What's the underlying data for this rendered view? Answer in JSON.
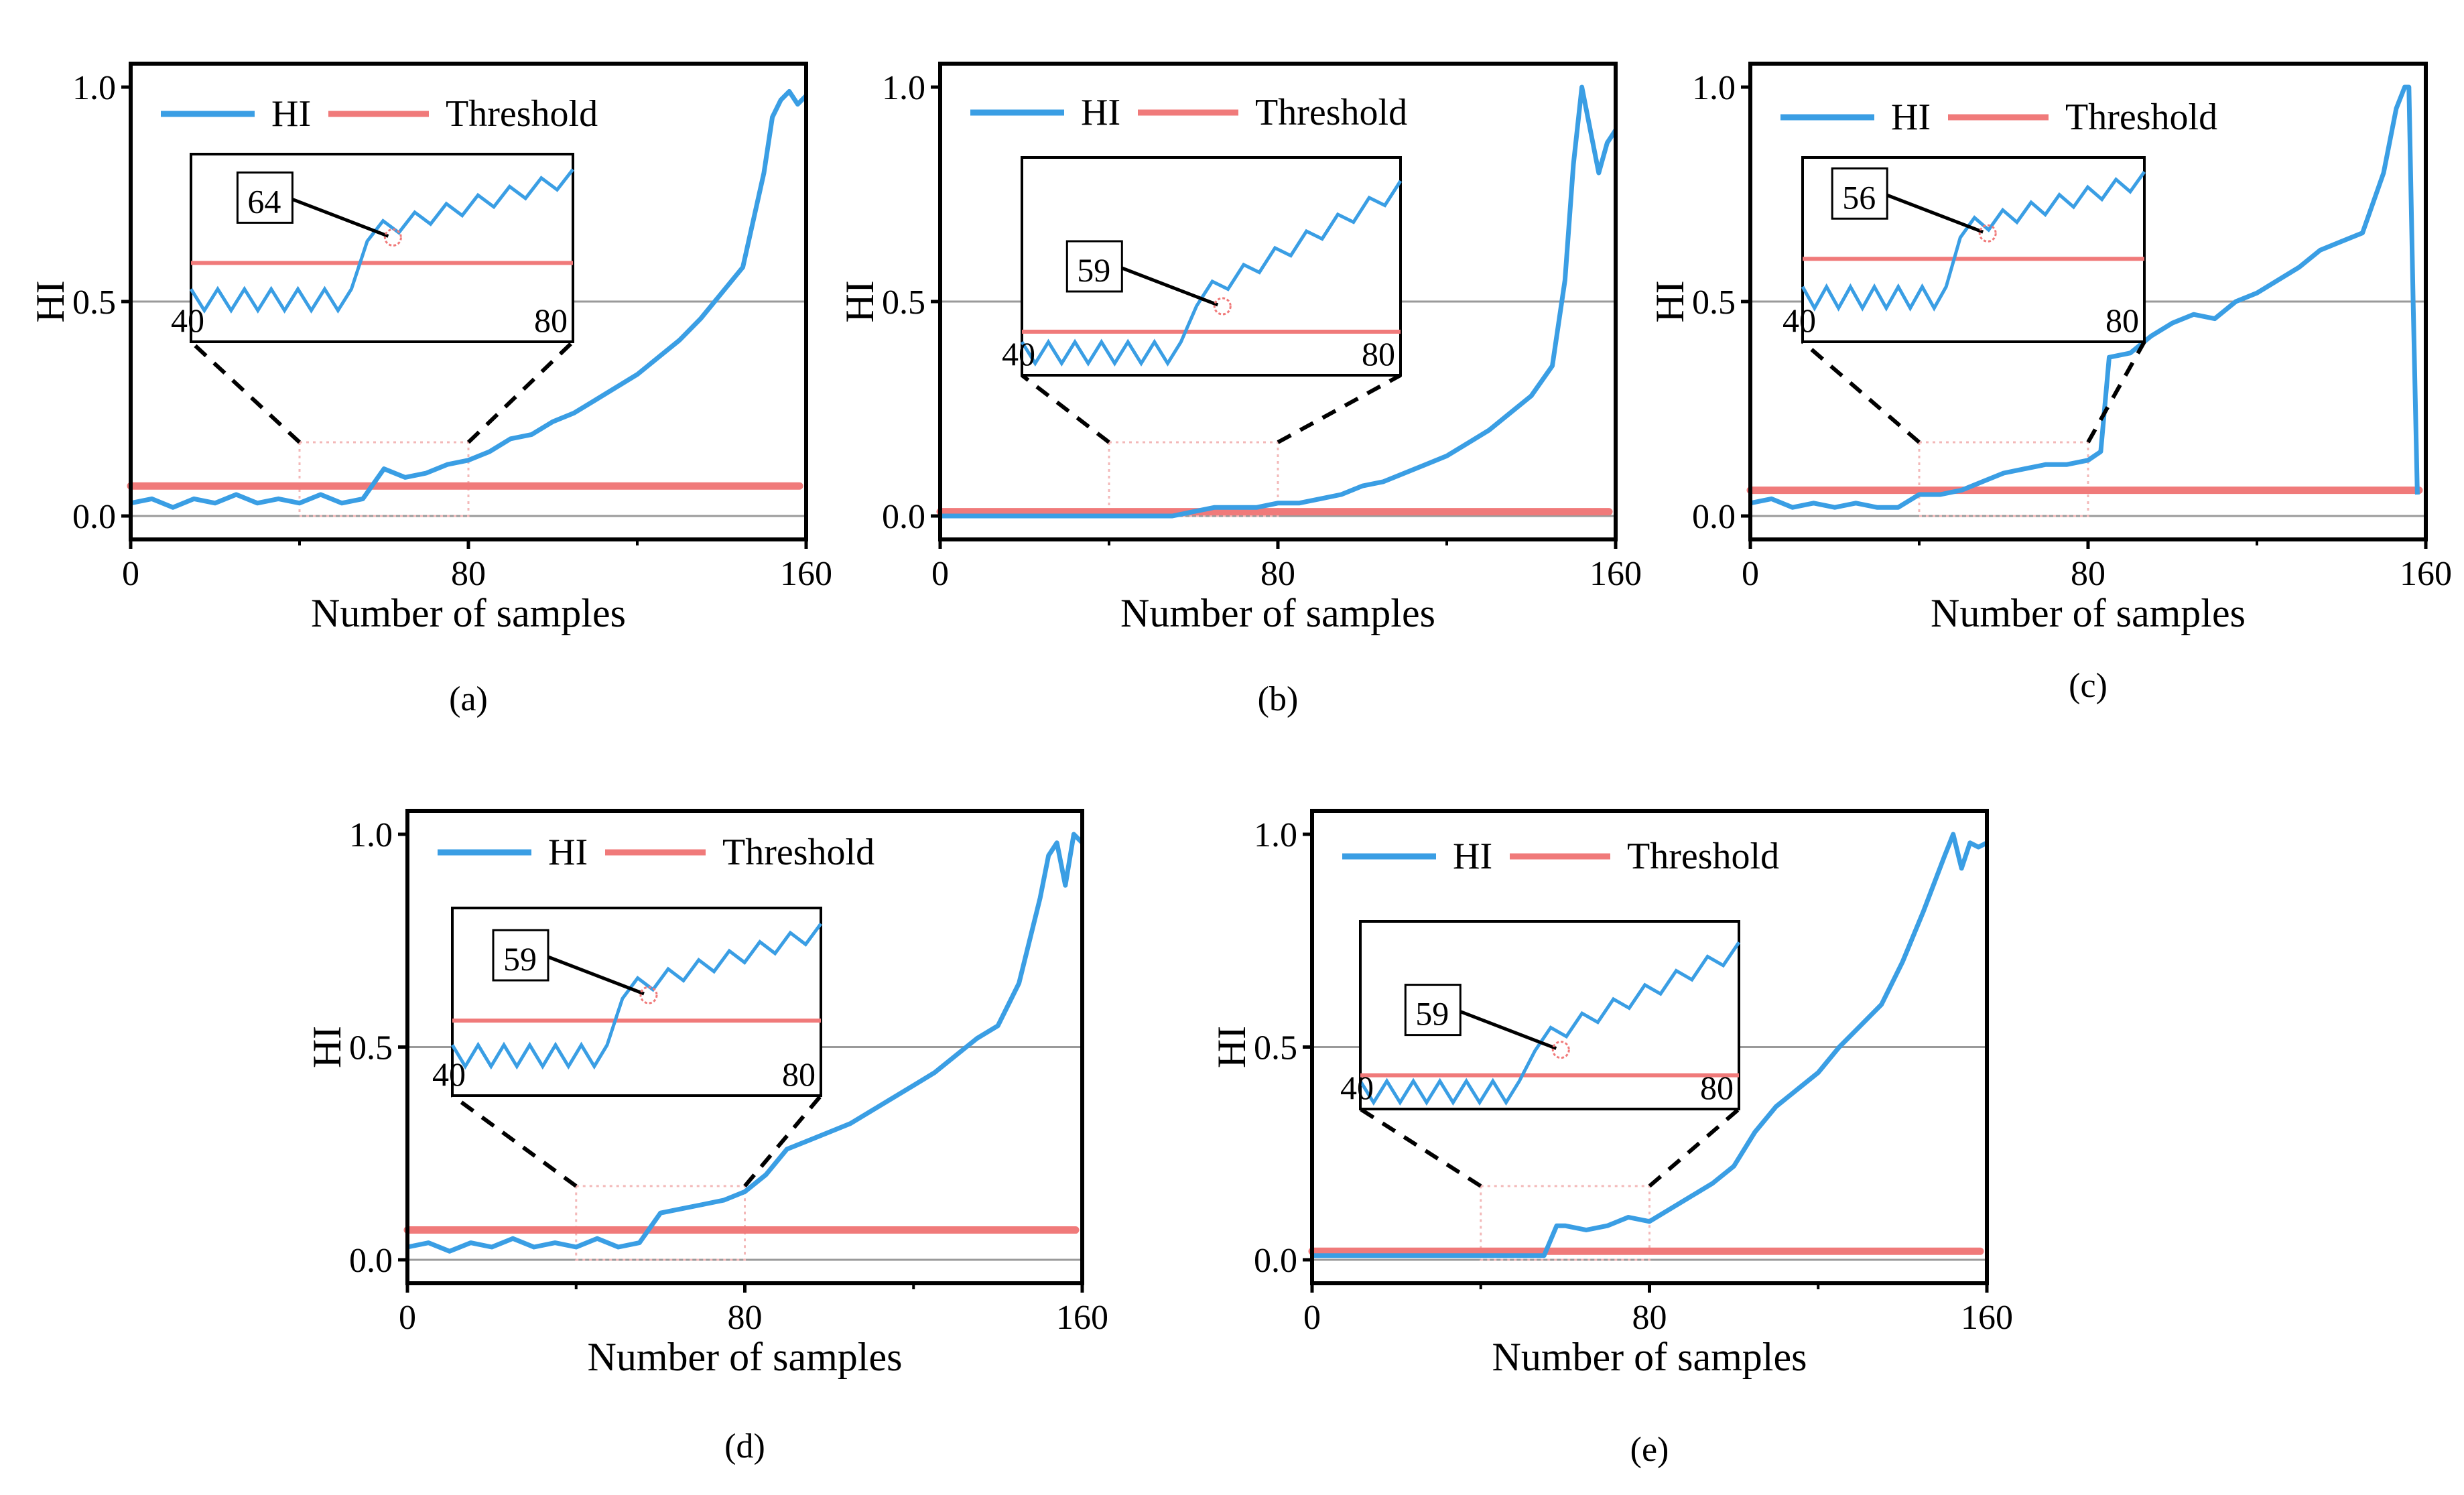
{
  "chart_data": [
    {
      "type": "line",
      "panel_label": "(a)",
      "xlabel": "Number of samples",
      "ylabel": "HI",
      "xlim": [
        0,
        160
      ],
      "ylim": [
        0,
        1
      ],
      "x_ticks": [
        "0",
        "80",
        "160"
      ],
      "y_ticks": [
        "0.0",
        "0.5",
        "1.0"
      ],
      "legend": [
        "HI",
        "Threshold"
      ],
      "legend_position": "top-left",
      "threshold": 0.07,
      "inset": {
        "range": [
          40,
          80
        ],
        "tick_labels": [
          "40",
          "80"
        ],
        "annotation": "64",
        "threshold_level": 0.42
      },
      "series": [
        {
          "name": "HI",
          "x": [
            0,
            5,
            10,
            15,
            20,
            25,
            30,
            35,
            40,
            45,
            50,
            55,
            60,
            65,
            70,
            75,
            80,
            85,
            90,
            95,
            100,
            105,
            110,
            115,
            120,
            125,
            130,
            135,
            140,
            145,
            150,
            152,
            154,
            156,
            158,
            160
          ],
          "values": [
            0.03,
            0.04,
            0.02,
            0.04,
            0.03,
            0.05,
            0.03,
            0.04,
            0.03,
            0.05,
            0.03,
            0.04,
            0.11,
            0.09,
            0.1,
            0.12,
            0.13,
            0.15,
            0.18,
            0.19,
            0.22,
            0.24,
            0.27,
            0.3,
            0.33,
            0.37,
            0.41,
            0.46,
            0.52,
            0.58,
            0.8,
            0.93,
            0.97,
            0.99,
            0.96,
            0.98
          ]
        }
      ]
    },
    {
      "type": "line",
      "panel_label": "(b)",
      "xlabel": "Number of samples",
      "ylabel": "HI",
      "xlim": [
        0,
        160
      ],
      "ylim": [
        0,
        1
      ],
      "x_ticks": [
        "0",
        "80",
        "160"
      ],
      "y_ticks": [
        "0.0",
        "0.5",
        "1.0"
      ],
      "legend": [
        "HI",
        "Threshold"
      ],
      "legend_position": "top-left",
      "threshold": 0.01,
      "inset": {
        "range": [
          40,
          80
        ],
        "tick_labels": [
          "40",
          "80"
        ],
        "annotation": "59",
        "threshold_level": 0.2
      },
      "series": [
        {
          "name": "HI",
          "x": [
            0,
            10,
            20,
            30,
            40,
            50,
            55,
            60,
            65,
            70,
            75,
            80,
            85,
            90,
            95,
            100,
            105,
            110,
            115,
            120,
            125,
            130,
            135,
            140,
            145,
            148,
            150,
            152,
            154,
            156,
            158,
            160
          ],
          "values": [
            0.0,
            0.0,
            0.0,
            0.0,
            0.0,
            0.0,
            0.0,
            0.01,
            0.02,
            0.02,
            0.02,
            0.03,
            0.03,
            0.04,
            0.05,
            0.07,
            0.08,
            0.1,
            0.12,
            0.14,
            0.17,
            0.2,
            0.24,
            0.28,
            0.35,
            0.55,
            0.82,
            1.0,
            0.9,
            0.8,
            0.87,
            0.9
          ]
        }
      ]
    },
    {
      "type": "line",
      "panel_label": "(c)",
      "xlabel": "Number of samples",
      "ylabel": "HI",
      "xlim": [
        0,
        160
      ],
      "ylim": [
        0,
        1
      ],
      "x_ticks": [
        "0",
        "80",
        "160"
      ],
      "y_ticks": [
        "0.0",
        "0.5",
        "1.0"
      ],
      "legend": [
        "HI",
        "Threshold"
      ],
      "legend_position": "top-left",
      "threshold": 0.06,
      "inset": {
        "range": [
          40,
          80
        ],
        "tick_labels": [
          "40",
          "80"
        ],
        "annotation": "56",
        "threshold_level": 0.45
      },
      "series": [
        {
          "name": "HI",
          "x": [
            0,
            5,
            10,
            15,
            20,
            25,
            30,
            35,
            40,
            45,
            50,
            55,
            60,
            65,
            70,
            75,
            80,
            83,
            85,
            90,
            95,
            100,
            105,
            110,
            115,
            120,
            125,
            130,
            135,
            140,
            145,
            150,
            153,
            155,
            156,
            157,
            158
          ],
          "values": [
            0.03,
            0.04,
            0.02,
            0.03,
            0.02,
            0.03,
            0.02,
            0.02,
            0.05,
            0.05,
            0.06,
            0.08,
            0.1,
            0.11,
            0.12,
            0.12,
            0.13,
            0.15,
            0.37,
            0.38,
            0.42,
            0.45,
            0.47,
            0.46,
            0.5,
            0.52,
            0.55,
            0.58,
            0.62,
            0.64,
            0.66,
            0.8,
            0.95,
            1.0,
            1.0,
            0.5,
            0.05
          ]
        }
      ]
    },
    {
      "type": "line",
      "panel_label": "(d)",
      "xlabel": "Number of samples",
      "ylabel": "HI",
      "xlim": [
        0,
        160
      ],
      "ylim": [
        0,
        1
      ],
      "x_ticks": [
        "0",
        "80",
        "160"
      ],
      "y_ticks": [
        "0.0",
        "0.5",
        "1.0"
      ],
      "legend": [
        "HI",
        "Threshold"
      ],
      "legend_position": "top-left",
      "threshold": 0.07,
      "inset": {
        "range": [
          40,
          80
        ],
        "tick_labels": [
          "40",
          "80"
        ],
        "annotation": "59",
        "threshold_level": 0.4
      },
      "series": [
        {
          "name": "HI",
          "x": [
            0,
            5,
            10,
            15,
            20,
            25,
            30,
            35,
            40,
            45,
            50,
            55,
            60,
            65,
            70,
            75,
            80,
            85,
            90,
            95,
            100,
            105,
            110,
            115,
            120,
            125,
            130,
            135,
            140,
            145,
            150,
            152,
            154,
            156,
            158,
            160
          ],
          "values": [
            0.03,
            0.04,
            0.02,
            0.04,
            0.03,
            0.05,
            0.03,
            0.04,
            0.03,
            0.05,
            0.03,
            0.04,
            0.11,
            0.12,
            0.13,
            0.14,
            0.16,
            0.2,
            0.26,
            0.28,
            0.3,
            0.32,
            0.35,
            0.38,
            0.41,
            0.44,
            0.48,
            0.52,
            0.55,
            0.65,
            0.85,
            0.95,
            0.98,
            0.88,
            1.0,
            0.98
          ]
        }
      ]
    },
    {
      "type": "line",
      "panel_label": "(e)",
      "xlabel": "Number of samples",
      "ylabel": "HI",
      "xlim": [
        0,
        160
      ],
      "ylim": [
        0,
        1
      ],
      "x_ticks": [
        "0",
        "80",
        "160"
      ],
      "y_ticks": [
        "0.0",
        "0.5",
        "1.0"
      ],
      "legend": [
        "HI",
        "Threshold"
      ],
      "legend_position": "top-left",
      "threshold": 0.02,
      "inset": {
        "range": [
          40,
          80
        ],
        "tick_labels": [
          "40",
          "80"
        ],
        "annotation": "59",
        "threshold_level": 0.18
      },
      "series": [
        {
          "name": "HI",
          "x": [
            0,
            10,
            20,
            30,
            40,
            50,
            55,
            58,
            60,
            65,
            70,
            75,
            80,
            85,
            90,
            95,
            100,
            105,
            110,
            115,
            120,
            125,
            130,
            135,
            140,
            145,
            150,
            152,
            154,
            156,
            158,
            160
          ],
          "values": [
            0.01,
            0.01,
            0.01,
            0.01,
            0.01,
            0.01,
            0.01,
            0.08,
            0.08,
            0.07,
            0.08,
            0.1,
            0.09,
            0.12,
            0.15,
            0.18,
            0.22,
            0.3,
            0.36,
            0.4,
            0.44,
            0.5,
            0.55,
            0.6,
            0.7,
            0.82,
            0.95,
            1.0,
            0.92,
            0.98,
            0.97,
            0.98
          ]
        }
      ]
    }
  ]
}
